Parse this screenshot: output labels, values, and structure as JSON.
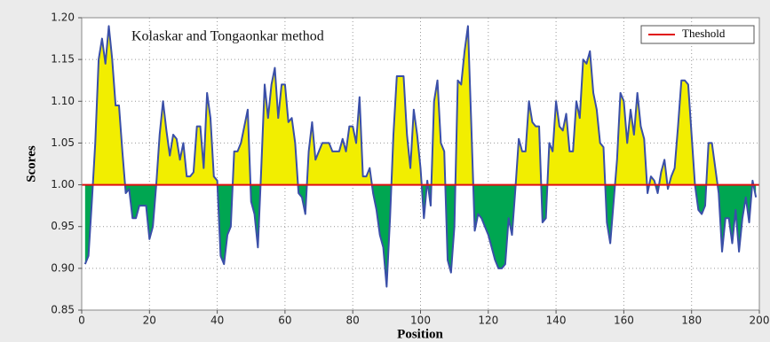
{
  "chart_data": {
    "type": "line",
    "title": "Kolaskar and Tongaonkar method",
    "x_label": "Position",
    "y_label": "Scores",
    "xlim": [
      0,
      200
    ],
    "ylim": [
      0.85,
      1.2
    ],
    "xticks": [
      0,
      20,
      40,
      60,
      80,
      100,
      120,
      140,
      160,
      180,
      200
    ],
    "yticks": [
      0.85,
      {
        "value": 0.9,
        "label": "0.90"
      },
      0.95,
      {
        "value": 1,
        "label": "1.00"
      },
      1.05,
      {
        "value": 1.1,
        "label": "1.10"
      },
      1.15,
      {
        "value": 1.2,
        "label": "1.20"
      }
    ],
    "grid": true,
    "legend": "upper right",
    "threshold": {
      "name": "Theshold",
      "value": 1,
      "color": "#e01010"
    },
    "fill_colors": {
      "above": "#f2ee00",
      "below": "#00a651"
    },
    "series": [
      {
        "color": "#3a4fa8",
        "x": [
          1,
          2,
          3,
          4,
          5,
          6,
          7,
          8,
          9,
          10,
          11,
          12,
          13,
          14,
          15,
          16,
          17,
          18,
          19,
          20,
          21,
          22,
          23,
          24,
          25,
          26,
          27,
          28,
          29,
          30,
          31,
          32,
          33,
          34,
          35,
          36,
          37,
          38,
          39,
          40,
          41,
          42,
          43,
          44,
          45,
          46,
          47,
          48,
          49,
          50,
          51,
          52,
          53,
          54,
          55,
          56,
          57,
          58,
          59,
          60,
          61,
          62,
          63,
          64,
          65,
          66,
          67,
          68,
          69,
          70,
          71,
          72,
          73,
          74,
          75,
          76,
          77,
          78,
          79,
          80,
          81,
          82,
          83,
          84,
          85,
          86,
          87,
          88,
          89,
          90,
          91,
          92,
          93,
          94,
          95,
          96,
          97,
          98,
          99,
          100,
          101,
          102,
          103,
          104,
          105,
          106,
          107,
          108,
          109,
          110,
          111,
          112,
          113,
          114,
          115,
          116,
          117,
          118,
          119,
          120,
          121,
          122,
          123,
          124,
          125,
          126,
          127,
          128,
          129,
          130,
          131,
          132,
          133,
          134,
          135,
          136,
          137,
          138,
          139,
          140,
          141,
          142,
          143,
          144,
          145,
          146,
          147,
          148,
          149,
          150,
          151,
          152,
          153,
          154,
          155,
          156,
          157,
          158,
          159,
          160,
          161,
          162,
          163,
          164,
          165,
          166,
          167,
          168,
          169,
          170,
          171,
          172,
          173,
          174,
          175,
          176,
          177,
          178,
          179,
          180,
          181,
          182,
          183,
          184,
          185,
          186,
          187,
          188,
          189,
          190,
          191,
          192,
          193,
          194,
          195,
          196,
          197,
          198,
          199
        ],
        "values": [
          0.905,
          0.915,
          0.98,
          1.05,
          1.15,
          1.175,
          1.145,
          1.19,
          1.15,
          1.095,
          1.095,
          1.04,
          0.99,
          0.995,
          0.96,
          0.96,
          0.975,
          0.975,
          0.975,
          0.935,
          0.95,
          1.0,
          1.06,
          1.1,
          1.065,
          1.035,
          1.06,
          1.055,
          1.03,
          1.05,
          1.01,
          1.01,
          1.015,
          1.07,
          1.07,
          1.02,
          1.11,
          1.08,
          1.01,
          1.005,
          0.915,
          0.905,
          0.94,
          0.95,
          1.04,
          1.04,
          1.05,
          1.07,
          1.09,
          0.98,
          0.965,
          0.925,
          1.02,
          1.12,
          1.08,
          1.12,
          1.14,
          1.08,
          1.12,
          1.12,
          1.075,
          1.08,
          1.05,
          0.99,
          0.985,
          0.965,
          1.04,
          1.075,
          1.03,
          1.04,
          1.05,
          1.05,
          1.05,
          1.04,
          1.04,
          1.04,
          1.055,
          1.04,
          1.07,
          1.07,
          1.05,
          1.105,
          1.01,
          1.01,
          1.02,
          0.99,
          0.97,
          0.94,
          0.925,
          0.878,
          0.96,
          1.06,
          1.13,
          1.13,
          1.13,
          1.06,
          1.02,
          1.09,
          1.06,
          1.02,
          0.96,
          1.005,
          0.975,
          1.1,
          1.125,
          1.05,
          1.04,
          0.91,
          0.895,
          0.95,
          1.125,
          1.12,
          1.16,
          1.19,
          1.07,
          0.945,
          0.965,
          0.96,
          0.95,
          0.94,
          0.925,
          0.91,
          0.9,
          0.9,
          0.905,
          0.96,
          0.94,
          0.995,
          1.055,
          1.04,
          1.04,
          1.1,
          1.075,
          1.07,
          1.07,
          0.955,
          0.96,
          1.05,
          1.04,
          1.1,
          1.07,
          1.065,
          1.085,
          1.04,
          1.04,
          1.1,
          1.08,
          1.15,
          1.145,
          1.16,
          1.11,
          1.09,
          1.05,
          1.045,
          0.955,
          0.93,
          0.98,
          1.03,
          1.11,
          1.1,
          1.05,
          1.09,
          1.06,
          1.11,
          1.07,
          1.055,
          0.99,
          1.01,
          1.005,
          0.99,
          1.015,
          1.03,
          0.995,
          1.01,
          1.02,
          1.07,
          1.125,
          1.125,
          1.12,
          1.06,
          1.0,
          0.97,
          0.965,
          0.975,
          1.05,
          1.05,
          1.02,
          0.99,
          0.92,
          0.96,
          0.96,
          0.93,
          0.97,
          0.92,
          0.96,
          0.985,
          0.955,
          1.005,
          0.985
        ]
      }
    ]
  }
}
